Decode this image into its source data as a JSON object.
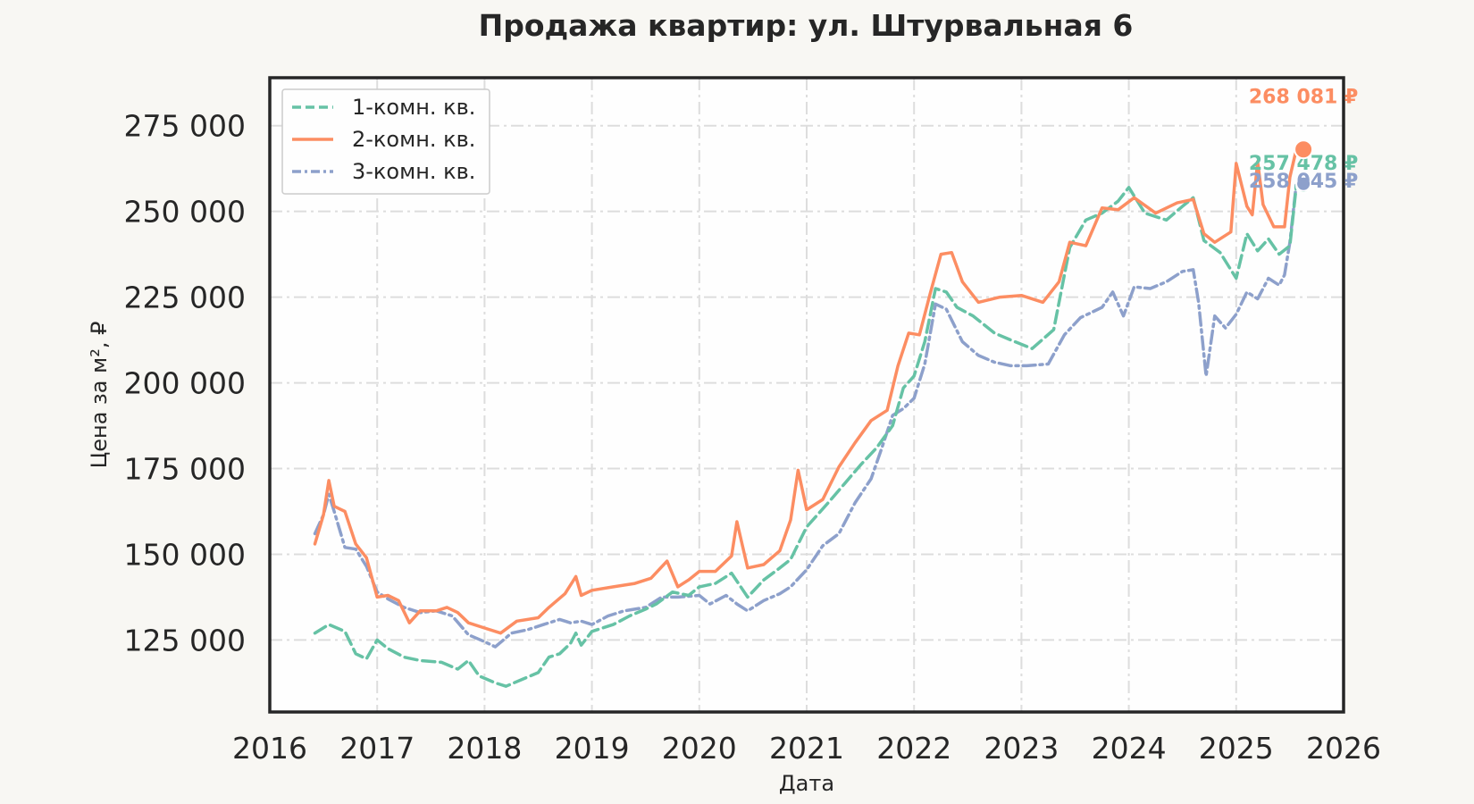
{
  "chart_data": {
    "type": "line",
    "title": "Продажа квартир: ул. Штурвальная 6",
    "xlabel": "Дата",
    "ylabel": "Цена за м², ₽",
    "xlim": [
      2016.0,
      2026.0
    ],
    "ylim": [
      104000,
      289000
    ],
    "x_ticks": [
      "2016",
      "2017",
      "2018",
      "2019",
      "2020",
      "2021",
      "2022",
      "2023",
      "2024",
      "2025",
      "2026"
    ],
    "y_ticks": [
      "125 000",
      "150 000",
      "175 000",
      "200 000",
      "225 000",
      "250 000",
      "275 000"
    ],
    "grid": true,
    "legend_position": "top-left",
    "series": [
      {
        "name": "1-комн. кв.",
        "color": "#66c2a5",
        "dash": "dashed",
        "end_label": "257 478 ₽",
        "end_value": 257478,
        "points": [
          [
            2016.42,
            127000
          ],
          [
            2016.55,
            129500
          ],
          [
            2016.7,
            127500
          ],
          [
            2016.8,
            121000
          ],
          [
            2016.9,
            119500
          ],
          [
            2017.0,
            125000
          ],
          [
            2017.1,
            122500
          ],
          [
            2017.25,
            120000
          ],
          [
            2017.4,
            119000
          ],
          [
            2017.6,
            118500
          ],
          [
            2017.75,
            116500
          ],
          [
            2017.85,
            119000
          ],
          [
            2017.95,
            114500
          ],
          [
            2018.1,
            112500
          ],
          [
            2018.2,
            111500
          ],
          [
            2018.35,
            113500
          ],
          [
            2018.5,
            115500
          ],
          [
            2018.6,
            120000
          ],
          [
            2018.7,
            121000
          ],
          [
            2018.8,
            124000
          ],
          [
            2018.85,
            127000
          ],
          [
            2018.9,
            123500
          ],
          [
            2019.0,
            127500
          ],
          [
            2019.2,
            129500
          ],
          [
            2019.35,
            132000
          ],
          [
            2019.5,
            134000
          ],
          [
            2019.6,
            135500
          ],
          [
            2019.75,
            139000
          ],
          [
            2019.9,
            138000
          ],
          [
            2020.0,
            140500
          ],
          [
            2020.15,
            141500
          ],
          [
            2020.3,
            144500
          ],
          [
            2020.45,
            137500
          ],
          [
            2020.6,
            142500
          ],
          [
            2020.75,
            146000
          ],
          [
            2020.85,
            148500
          ],
          [
            2021.0,
            158000
          ],
          [
            2021.2,
            165000
          ],
          [
            2021.35,
            170500
          ],
          [
            2021.5,
            176000
          ],
          [
            2021.65,
            181000
          ],
          [
            2021.8,
            187500
          ],
          [
            2021.9,
            198500
          ],
          [
            2022.0,
            202000
          ],
          [
            2022.1,
            212000
          ],
          [
            2022.2,
            227500
          ],
          [
            2022.3,
            226500
          ],
          [
            2022.4,
            222000
          ],
          [
            2022.55,
            219500
          ],
          [
            2022.75,
            214500
          ],
          [
            2022.9,
            212500
          ],
          [
            2023.1,
            210000
          ],
          [
            2023.3,
            215500
          ],
          [
            2023.45,
            239500
          ],
          [
            2023.6,
            247500
          ],
          [
            2023.75,
            249500
          ],
          [
            2023.9,
            253000
          ],
          [
            2024.0,
            257000
          ],
          [
            2024.15,
            249500
          ],
          [
            2024.35,
            247500
          ],
          [
            2024.5,
            251500
          ],
          [
            2024.6,
            254000
          ],
          [
            2024.7,
            241500
          ],
          [
            2024.85,
            238000
          ],
          [
            2025.0,
            230500
          ],
          [
            2025.1,
            243500
          ],
          [
            2025.2,
            238500
          ],
          [
            2025.3,
            242000
          ],
          [
            2025.4,
            237500
          ],
          [
            2025.5,
            240000
          ],
          [
            2025.56,
            257478
          ]
        ]
      },
      {
        "name": "2-комн. кв.",
        "color": "#fc8d62",
        "dash": "solid",
        "end_label": "268 081 ₽",
        "end_value": 268081,
        "points": [
          [
            2016.42,
            153000
          ],
          [
            2016.5,
            161500
          ],
          [
            2016.55,
            171500
          ],
          [
            2016.6,
            164000
          ],
          [
            2016.7,
            162500
          ],
          [
            2016.8,
            153000
          ],
          [
            2016.9,
            149000
          ],
          [
            2017.0,
            137500
          ],
          [
            2017.1,
            138000
          ],
          [
            2017.2,
            136500
          ],
          [
            2017.3,
            130000
          ],
          [
            2017.4,
            133500
          ],
          [
            2017.55,
            133500
          ],
          [
            2017.65,
            134500
          ],
          [
            2017.75,
            133000
          ],
          [
            2017.85,
            130000
          ],
          [
            2018.0,
            128500
          ],
          [
            2018.15,
            127000
          ],
          [
            2018.3,
            130500
          ],
          [
            2018.5,
            131500
          ],
          [
            2018.6,
            134500
          ],
          [
            2018.75,
            138500
          ],
          [
            2018.85,
            143500
          ],
          [
            2018.9,
            138000
          ],
          [
            2019.0,
            139500
          ],
          [
            2019.2,
            140500
          ],
          [
            2019.4,
            141500
          ],
          [
            2019.55,
            143000
          ],
          [
            2019.7,
            148000
          ],
          [
            2019.8,
            140500
          ],
          [
            2019.9,
            142500
          ],
          [
            2020.0,
            145000
          ],
          [
            2020.15,
            145000
          ],
          [
            2020.3,
            149500
          ],
          [
            2020.35,
            159500
          ],
          [
            2020.45,
            146000
          ],
          [
            2020.6,
            147000
          ],
          [
            2020.75,
            151000
          ],
          [
            2020.85,
            160000
          ],
          [
            2020.92,
            174500
          ],
          [
            2021.0,
            163000
          ],
          [
            2021.15,
            166000
          ],
          [
            2021.3,
            175500
          ],
          [
            2021.45,
            182500
          ],
          [
            2021.6,
            189000
          ],
          [
            2021.75,
            192000
          ],
          [
            2021.85,
            205000
          ],
          [
            2021.95,
            214500
          ],
          [
            2022.05,
            214000
          ],
          [
            2022.15,
            226000
          ],
          [
            2022.25,
            237500
          ],
          [
            2022.35,
            238000
          ],
          [
            2022.45,
            229500
          ],
          [
            2022.6,
            223500
          ],
          [
            2022.8,
            225000
          ],
          [
            2023.0,
            225500
          ],
          [
            2023.2,
            223500
          ],
          [
            2023.35,
            229500
          ],
          [
            2023.45,
            241000
          ],
          [
            2023.6,
            240000
          ],
          [
            2023.75,
            251000
          ],
          [
            2023.9,
            250500
          ],
          [
            2024.05,
            254000
          ],
          [
            2024.25,
            249500
          ],
          [
            2024.45,
            252500
          ],
          [
            2024.6,
            253500
          ],
          [
            2024.7,
            243500
          ],
          [
            2024.8,
            241000
          ],
          [
            2024.95,
            244000
          ],
          [
            2025.0,
            264000
          ],
          [
            2025.1,
            251500
          ],
          [
            2025.15,
            249000
          ],
          [
            2025.2,
            264500
          ],
          [
            2025.25,
            252000
          ],
          [
            2025.35,
            245500
          ],
          [
            2025.45,
            245500
          ],
          [
            2025.5,
            260000
          ],
          [
            2025.56,
            268081
          ]
        ]
      },
      {
        "name": "3-комн. кв.",
        "color": "#8da0cb",
        "dash": "dashdot",
        "end_label": "258 045 ₽",
        "end_value": 258045,
        "points": [
          [
            2016.42,
            156000
          ],
          [
            2016.5,
            161500
          ],
          [
            2016.55,
            167500
          ],
          [
            2016.6,
            162500
          ],
          [
            2016.7,
            152000
          ],
          [
            2016.8,
            151500
          ],
          [
            2016.9,
            146500
          ],
          [
            2017.0,
            139000
          ],
          [
            2017.1,
            137000
          ],
          [
            2017.25,
            134500
          ],
          [
            2017.4,
            133000
          ],
          [
            2017.55,
            133500
          ],
          [
            2017.7,
            132000
          ],
          [
            2017.85,
            126500
          ],
          [
            2018.0,
            124500
          ],
          [
            2018.1,
            123000
          ],
          [
            2018.25,
            127000
          ],
          [
            2018.4,
            128000
          ],
          [
            2018.55,
            129500
          ],
          [
            2018.7,
            131000
          ],
          [
            2018.8,
            130000
          ],
          [
            2018.9,
            130500
          ],
          [
            2019.0,
            129500
          ],
          [
            2019.15,
            132000
          ],
          [
            2019.3,
            133500
          ],
          [
            2019.5,
            134500
          ],
          [
            2019.65,
            137500
          ],
          [
            2019.8,
            137500
          ],
          [
            2020.0,
            138000
          ],
          [
            2020.1,
            135500
          ],
          [
            2020.25,
            138000
          ],
          [
            2020.35,
            135500
          ],
          [
            2020.45,
            133500
          ],
          [
            2020.6,
            136500
          ],
          [
            2020.75,
            138500
          ],
          [
            2020.85,
            140500
          ],
          [
            2021.0,
            145500
          ],
          [
            2021.15,
            152500
          ],
          [
            2021.3,
            156000
          ],
          [
            2021.45,
            165000
          ],
          [
            2021.6,
            172000
          ],
          [
            2021.7,
            181000
          ],
          [
            2021.8,
            190500
          ],
          [
            2021.9,
            192500
          ],
          [
            2022.0,
            195500
          ],
          [
            2022.1,
            205500
          ],
          [
            2022.2,
            223000
          ],
          [
            2022.3,
            221500
          ],
          [
            2022.45,
            212000
          ],
          [
            2022.6,
            208000
          ],
          [
            2022.75,
            206000
          ],
          [
            2022.9,
            205000
          ],
          [
            2023.05,
            205000
          ],
          [
            2023.25,
            205500
          ],
          [
            2023.4,
            214000
          ],
          [
            2023.55,
            219000
          ],
          [
            2023.75,
            222000
          ],
          [
            2023.85,
            226500
          ],
          [
            2023.95,
            219500
          ],
          [
            2024.05,
            228000
          ],
          [
            2024.2,
            227500
          ],
          [
            2024.35,
            229500
          ],
          [
            2024.5,
            232500
          ],
          [
            2024.6,
            233000
          ],
          [
            2024.65,
            223500
          ],
          [
            2024.72,
            202000
          ],
          [
            2024.8,
            219500
          ],
          [
            2024.9,
            216000
          ],
          [
            2025.0,
            220000
          ],
          [
            2025.1,
            226500
          ],
          [
            2025.2,
            224500
          ],
          [
            2025.3,
            230500
          ],
          [
            2025.4,
            228500
          ],
          [
            2025.45,
            231500
          ],
          [
            2025.5,
            241000
          ],
          [
            2025.56,
            258045
          ]
        ]
      }
    ]
  }
}
